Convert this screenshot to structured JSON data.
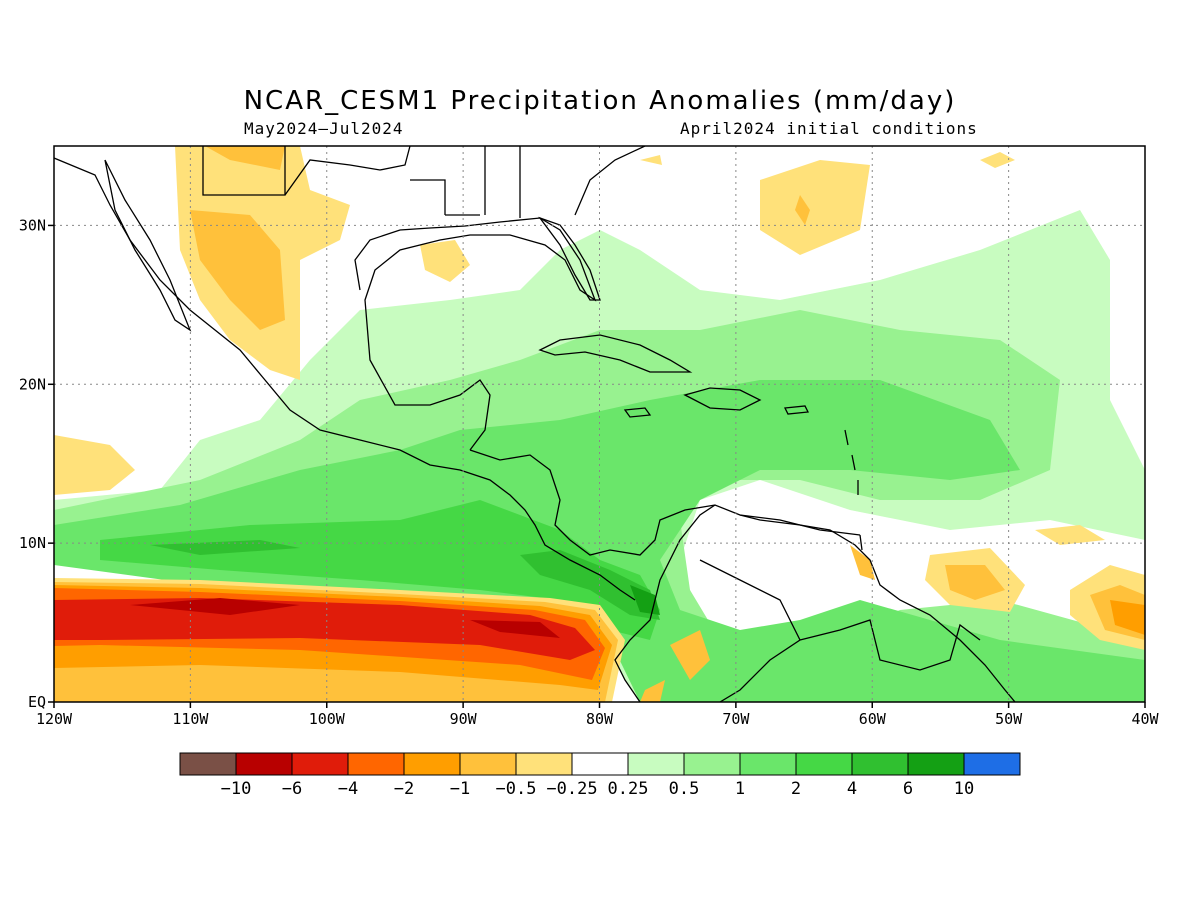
{
  "title": "NCAR_CESM1 Precipitation Anomalies (mm/day)",
  "subtitle_left": "May2024–Jul2024",
  "subtitle_right": "April2024 initial conditions",
  "map": {
    "lon_range": [
      -120,
      -40
    ],
    "lat_range": [
      0,
      35
    ],
    "grid": true,
    "lon_ticks": [
      {
        "value": -120,
        "label": "120W"
      },
      {
        "value": -110,
        "label": "110W"
      },
      {
        "value": -100,
        "label": "100W"
      },
      {
        "value": -90,
        "label": "90W"
      },
      {
        "value": -80,
        "label": "80W"
      },
      {
        "value": -70,
        "label": "70W"
      },
      {
        "value": -60,
        "label": "60W"
      },
      {
        "value": -50,
        "label": "50W"
      },
      {
        "value": -40,
        "label": "40W"
      }
    ],
    "lat_ticks": [
      {
        "value": 0,
        "label": "EQ"
      },
      {
        "value": 10,
        "label": "10N"
      },
      {
        "value": 20,
        "label": "20N"
      },
      {
        "value": 30,
        "label": "30N"
      }
    ]
  },
  "colorbar": {
    "colors": [
      "#7a5046",
      "#b80000",
      "#e01c0a",
      "#ff6600",
      "#ff9e00",
      "#ffc13b",
      "#ffe17a",
      "#ffffff",
      "#c8fcc0",
      "#98f290",
      "#6ae66a",
      "#45d845",
      "#30c030",
      "#14a014",
      "#1e6ee6"
    ],
    "labels": [
      "−10",
      "−6",
      "−4",
      "−2",
      "−1",
      "−0.5",
      "−0.25",
      "0.25",
      "0.5",
      "1",
      "2",
      "4",
      "6",
      "10"
    ]
  }
}
